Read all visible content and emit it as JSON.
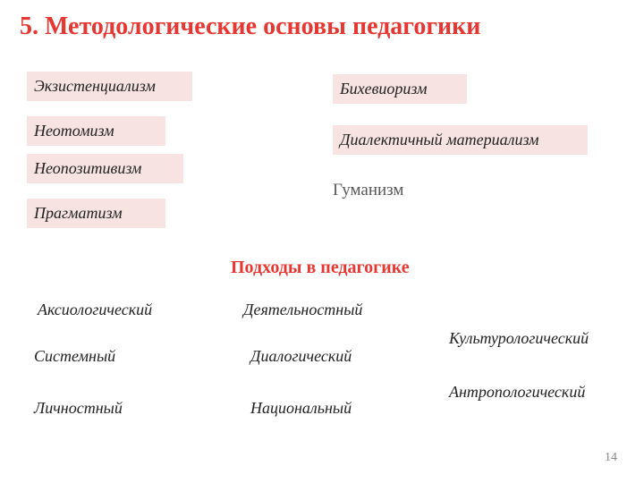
{
  "title": "5. Методологические основы педагогики",
  "boxes": {
    "left": [
      "Экзистенциализм",
      "Неотомизм",
      "Неопозитивизм",
      "Прагматизм"
    ],
    "right_boxed": [
      "Бихевиоризм",
      "Диалектичный материализм"
    ],
    "right_plain": "Гуманизм"
  },
  "subtitle": "Подходы в педагогике",
  "approaches": {
    "col1": [
      "Аксиологический",
      "Системный",
      "Личностный"
    ],
    "col2": [
      "Деятельностный",
      "Диалогический",
      "Национальный"
    ],
    "col3": [
      "Культурологический",
      "Антропологический"
    ]
  },
  "page_number": "14",
  "colors": {
    "accent": "#e63832",
    "box_bg": "#f6e3e2",
    "plain_text": "#58595b"
  }
}
